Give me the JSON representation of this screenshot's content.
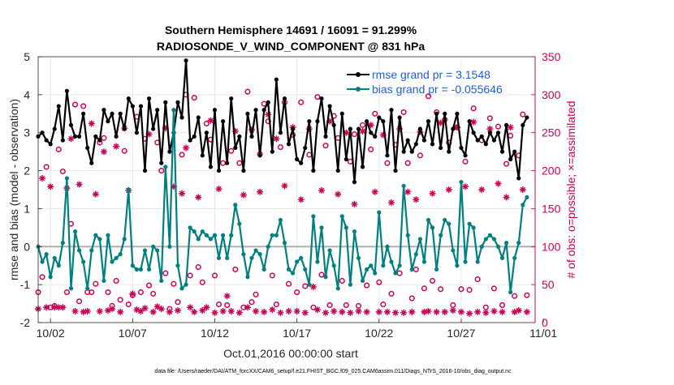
{
  "chart_data": {
    "type": "line",
    "title": [
      "Southern Hemisphere 14691 / 16091 = 91.299%",
      "RADIOSONDE_V_WIND_COMPONENT @ 831 hPa"
    ],
    "xlabel": "Oct.01,2016 00:00:00 start",
    "ylabel_left": "rmse and bias (model - observation)",
    "ylabel_right": "# of obs: o=possible; ×=assimilated",
    "footer": "data file: /Users/raeder/DAI/ATM_forcXX/CAM6_setup/f.e21.FHIST_BGC.f09_025.CAM6assim.011/Diags_NTrS_2016-10/obs_diag_output.nc",
    "xlim": [
      1.25,
      31.5
    ],
    "ylim_left": [
      -2,
      5
    ],
    "ylim_right": [
      0,
      350
    ],
    "x_ticks": [
      2,
      7,
      12,
      17,
      22,
      27,
      32
    ],
    "x_tick_labels": [
      "10/02",
      "10/07",
      "10/12",
      "10/17",
      "10/22",
      "10/27",
      "11/01"
    ],
    "y_ticks_left": [
      -2,
      -1,
      0,
      1,
      2,
      3,
      4,
      5
    ],
    "y_ticks_right": [
      0,
      50,
      100,
      150,
      200,
      250,
      300,
      350
    ],
    "grid": true,
    "legend_position": "top-right",
    "series": [
      {
        "name": "rmse grand pr = 3.1548",
        "axis": "left",
        "color": "#000000",
        "start": 1.25,
        "step": 0.25,
        "values": [
          2.9,
          3.0,
          2.8,
          2.7,
          3.1,
          3.7,
          2.8,
          4.1,
          3.2,
          2.9,
          2.9,
          3.5,
          2.6,
          2.2,
          2.9,
          2.8,
          3.6,
          3.3,
          3.5,
          2.9,
          3.5,
          3.1,
          3.9,
          3.7,
          3.0,
          3.7,
          2.0,
          3.9,
          3.1,
          3.6,
          2.2,
          3.8,
          2.5,
          3.0,
          3.8,
          3.4,
          4.9,
          2.8,
          2.9,
          3.4,
          2.4,
          3.0,
          2.1,
          3.6,
          2.0,
          3.3,
          2.2,
          3.9,
          2.6,
          2.9,
          2.0,
          3.5,
          2.9,
          3.6,
          2.4,
          3.6,
          3.8,
          2.5,
          4.4,
          3.0,
          3.9,
          2.7,
          3.1,
          2.3,
          2.2,
          2.6,
          3.3,
          2.0,
          3.3,
          3.9,
          2.9,
          3.7,
          3.2,
          2.0,
          3.5,
          2.3,
          3.1,
          1.7,
          3.1,
          2.1,
          3.3,
          3.0,
          2.9,
          3.4,
          3.3,
          2.4,
          3.6,
          2.0,
          3.4,
          2.5,
          2.8,
          2.5,
          2.7,
          3.1,
          2.8,
          3.3,
          2.7,
          3.5,
          2.6,
          3.5,
          2.5,
          3.1,
          3.5,
          2.6,
          2.4,
          3.3,
          3.0,
          2.8,
          2.9,
          2.7,
          3.0,
          2.8,
          3.0,
          2.5,
          3.2,
          2.3,
          2.5,
          1.8,
          3.2,
          3.4
        ]
      },
      {
        "name": "bias grand pr = -0.055646",
        "axis": "left",
        "color": "#008080",
        "start": 1.25,
        "step": 0.25,
        "values": [
          0.0,
          -0.4,
          -0.2,
          -0.8,
          -0.3,
          -0.5,
          0.1,
          1.8,
          -1.1,
          0.4,
          -0.1,
          -0.4,
          -1.1,
          -0.1,
          0.3,
          0.2,
          -0.9,
          0.3,
          -0.4,
          -0.3,
          -0.2,
          0.2,
          1.5,
          -0.5,
          -0.6,
          -0.6,
          -0.1,
          -0.6,
          0.0,
          -0.1,
          -0.9,
          2.1,
          0.0,
          3.6,
          -0.5,
          -1.1,
          -1.0,
          0.5,
          0.4,
          0.2,
          0.4,
          0.3,
          0.2,
          0.3,
          -0.3,
          0.3,
          -0.3,
          0.3,
          1.1,
          0.6,
          -0.2,
          -0.8,
          -0.3,
          -0.1,
          -0.2,
          -0.6,
          0.0,
          0.3,
          0.3,
          0.7,
          0.1,
          -0.6,
          -0.7,
          -0.4,
          -0.3,
          -0.6,
          -1.0,
          0.8,
          -0.4,
          0.5,
          -0.8,
          -0.1,
          -0.5,
          -1.1,
          0.8,
          0.5,
          -1.0,
          0.4,
          -0.3,
          -0.9,
          -0.6,
          -0.5,
          -0.7,
          0.9,
          -0.5,
          0.0,
          -0.4,
          -0.7,
          -0.5,
          1.6,
          0.3,
          -0.6,
          -0.2,
          0.2,
          -0.4,
          0.7,
          0.5,
          -0.6,
          0.3,
          0.7,
          0.6,
          -0.1,
          -0.5,
          1.7,
          -0.4,
          0.6,
          0.5,
          -0.4,
          0.0,
          0.2,
          0.3,
          0.2,
          0.0,
          -0.3,
          0.1,
          -1.2,
          -0.3,
          0.1,
          1.1,
          1.3
        ]
      },
      {
        "name": "possible",
        "axis": "right",
        "color": "#cc0055",
        "marker": "o",
        "start": 1.25,
        "step": 0.25,
        "values": [
          40,
          60,
          205,
          20,
          22,
          228,
          199,
          40,
          130,
          287,
          28,
          285,
          40,
          40,
          51,
          237,
          243,
          40,
          22,
          55,
          30,
          226,
          24,
          36,
          271,
          40,
          242,
          49,
          38,
          237,
          200,
          65,
          18,
          51,
          27,
          221,
          300,
          62,
          296,
          73,
          53,
          262,
          241,
          62,
          24,
          210,
          23,
          226,
          70,
          210,
          20,
          304,
          27,
          37,
          222,
          288,
          265,
          62,
          24,
          231,
          290,
          51,
          247,
          40,
          290,
          48,
          221,
          20,
          297,
          63,
          233,
          23,
          272,
          243,
          55,
          23,
          212,
          248,
          22,
          260,
          49,
          228,
          275,
          53,
          24,
          210,
          38,
          234,
          65,
          277,
          210,
          32,
          70,
          220,
          45,
          298,
          55,
          277,
          44,
          267,
          237,
          23,
          257,
          44,
          212,
          43,
          282,
          57,
          240,
          20,
          269,
          45,
          258,
          23,
          209,
          246,
          35,
          220,
          274,
          36
        ]
      },
      {
        "name": "assimilated",
        "axis": "right",
        "color": "#cc0055",
        "marker": "*",
        "start": 1.25,
        "step": 0.25,
        "values": [
          18,
          190,
          20,
          179,
          20,
          20,
          20,
          177,
          242,
          15,
          182,
          14,
          15,
          262,
          169,
          15,
          225,
          16,
          18,
          232,
          14,
          256,
          174,
          38,
          17,
          15,
          19,
          248,
          14,
          21,
          18,
          256,
          14,
          179,
          16,
          170,
          230,
          20,
          14,
          165,
          16,
          20,
          266,
          13,
          176,
          15,
          35,
          15,
          252,
          13,
          168,
          20,
          254,
          15,
          172,
          14,
          274,
          17,
          242,
          13,
          180,
          15,
          257,
          15,
          162,
          13,
          255,
          47,
          17,
          174,
          13,
          265,
          15,
          169,
          14,
          250,
          13,
          156,
          15,
          252,
          14,
          260,
          172,
          14,
          247,
          14,
          158,
          13,
          255,
          13,
          172,
          14,
          162,
          251,
          14,
          15,
          170,
          14,
          263,
          14,
          175,
          16,
          257,
          14,
          179,
          12,
          264,
          14,
          175,
          13,
          255,
          15,
          183,
          14,
          165,
          257,
          14,
          16,
          175,
          14
        ]
      }
    ]
  }
}
